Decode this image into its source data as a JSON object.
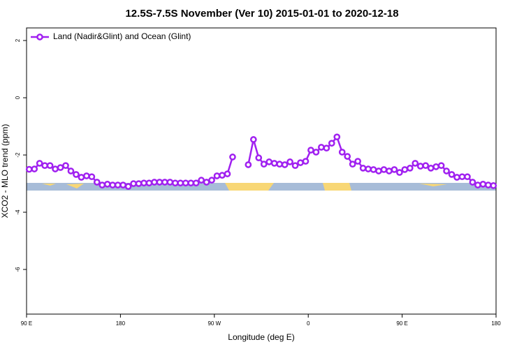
{
  "chart_data": {
    "type": "line",
    "title": "12.5S-7.5S November (Ver 10)   2015-01-01 to 2020-12-18",
    "xlabel": "Longitude (deg E)",
    "ylabel": "XCO2 - MLO trend (ppm)",
    "xlim": [
      90,
      540
    ],
    "xticks": [
      {
        "value": 90,
        "label": "90 E"
      },
      180,
      {
        "value": 270,
        "label": "90 W"
      },
      {
        "value": 360,
        "label": "0"
      },
      {
        "value": 450,
        "label": "90 E"
      },
      {
        "value": 540,
        "label": "180"
      }
    ],
    "ylim": [
      -7.56,
      2.44
    ],
    "yticks": [
      2,
      0,
      -2,
      -4,
      -6
    ],
    "grid": false,
    "legend": "top-left",
    "x": [
      92.5,
      97.5,
      102.5,
      107.5,
      112.5,
      117.5,
      122.5,
      127.5,
      132.5,
      137.5,
      142.5,
      147.5,
      152.5,
      157.5,
      162.5,
      167.5,
      172.5,
      177.5,
      182.5,
      187.5,
      192.5,
      197.5,
      202.5,
      207.5,
      212.5,
      217.5,
      222.5,
      227.5,
      232.5,
      237.5,
      242.5,
      247.5,
      252.5,
      257.5,
      262.5,
      267.5,
      272.5,
      277.5,
      282.5,
      287.5,
      292.5,
      297.5,
      302.5,
      307.5,
      312.5,
      317.5,
      322.5,
      327.5,
      332.5,
      337.5,
      342.5,
      347.5,
      352.5,
      357.5,
      362.5,
      367.5,
      372.5,
      377.5,
      382.5,
      387.5,
      392.5,
      397.5,
      402.5,
      407.5,
      412.5,
      417.5,
      422.5,
      427.5,
      432.5,
      437.5,
      442.5,
      447.5,
      452.5,
      457.5,
      462.5,
      467.5,
      472.5,
      477.5,
      482.5,
      487.5,
      492.5,
      497.5,
      502.5,
      507.5,
      512.5,
      517.5,
      522.5,
      527.5,
      532.5,
      537.5
    ],
    "series": [
      {
        "name": "Land (Nadir&Glint) and Ocean (Glint)",
        "color": "#a020f0",
        "values": [
          -2.5,
          -2.49,
          -2.29,
          -2.37,
          -2.37,
          -2.49,
          -2.44,
          -2.37,
          -2.56,
          -2.68,
          -2.78,
          -2.73,
          -2.76,
          -2.95,
          -3.05,
          -3.02,
          -3.05,
          -3.05,
          -3.05,
          -3.1,
          -3.0,
          -3.0,
          -2.98,
          -2.98,
          -2.95,
          -2.95,
          -2.95,
          -2.95,
          -2.98,
          -2.98,
          -2.98,
          -2.98,
          -2.98,
          -2.88,
          -2.95,
          -2.88,
          -2.73,
          -2.71,
          -2.66,
          -2.07,
          null,
          null,
          -2.34,
          -1.46,
          -2.1,
          -2.32,
          -2.24,
          -2.29,
          -2.32,
          -2.34,
          -2.24,
          -2.37,
          -2.27,
          -2.22,
          -1.83,
          -1.9,
          -1.73,
          -1.76,
          -1.59,
          -1.37,
          -1.9,
          -2.05,
          -2.32,
          -2.22,
          -2.46,
          -2.49,
          -2.51,
          -2.56,
          -2.51,
          -2.56,
          -2.51,
          -2.61,
          -2.51,
          -2.46,
          -2.29,
          -2.39,
          -2.37,
          -2.46,
          -2.41,
          -2.37,
          -2.56,
          -2.68,
          -2.78,
          -2.76,
          -2.76,
          -2.95,
          -3.05,
          -3.02,
          -3.05,
          -3.07
        ]
      }
    ]
  }
}
